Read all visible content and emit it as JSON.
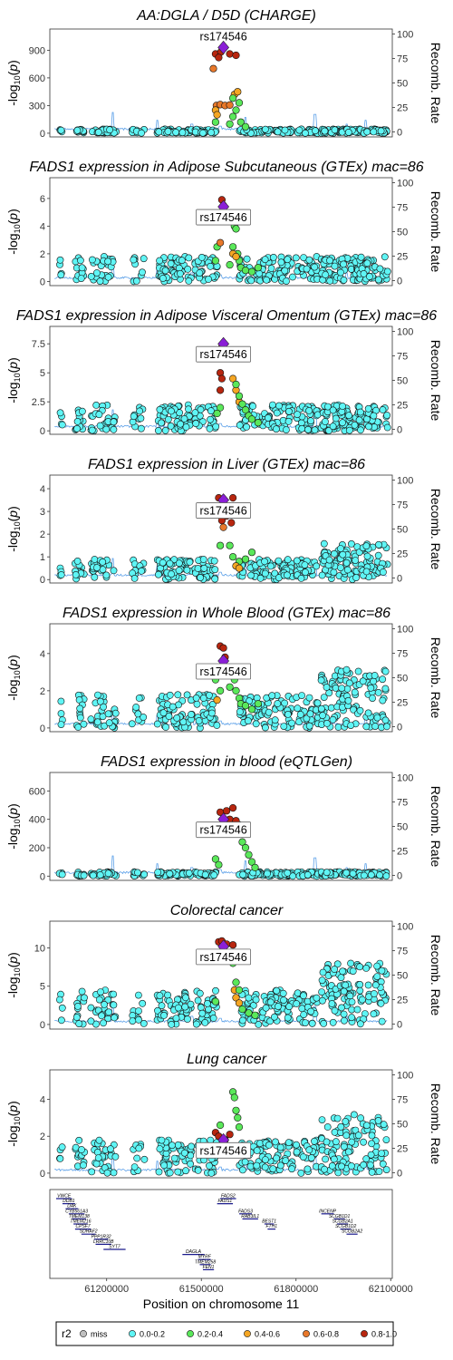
{
  "chart_data": {
    "type": "scatter",
    "xlabel": "Position on chromosome 11",
    "ylabel": "-log10(p)",
    "y2label": "Recomb. Rate",
    "xlim": [
      61020000,
      62105000
    ],
    "x_ticks": [
      61200000,
      61500000,
      61800000,
      62100000
    ],
    "y2_ticks": [
      0,
      25,
      50,
      75,
      100
    ],
    "lead_snp": "rs174546",
    "lead_position": 61570000,
    "colors": {
      "miss": "#bfbfbf",
      "0.0-0.2": "#5ff5f5",
      "0.2-0.4": "#5ae85a",
      "0.4-0.6": "#f5a623",
      "0.6-0.8": "#e8782a",
      "0.8-1.0": "#b8260f",
      "lead": "#8a1fd6",
      "recomb": "#5a9fe8"
    },
    "panels": [
      {
        "title": "AA:DGLA / D5D (CHARGE)",
        "ylim": [
          -40,
          1130
        ],
        "y_ticks": [
          0,
          300,
          600,
          900
        ],
        "lead_value": 930,
        "label_style": "plain",
        "high": [
          [
            "0.8-1.0",
            61545000,
            860
          ],
          [
            "0.8-1.0",
            61562000,
            880
          ],
          [
            "0.8-1.0",
            61590000,
            860
          ],
          [
            "0.8-1.0",
            61610000,
            845
          ],
          [
            "0.6-0.8",
            61538000,
            700
          ],
          [
            "0.8-1.0",
            61555000,
            820
          ]
        ],
        "mid": [
          [
            "0.6-0.8",
            61548000,
            300
          ],
          [
            "0.6-0.8",
            61560000,
            310
          ],
          [
            "0.6-0.8",
            61575000,
            300
          ],
          [
            "0.6-0.8",
            61590000,
            305
          ],
          [
            "0.4-0.6",
            61545000,
            250
          ],
          [
            "0.4-0.6",
            61605000,
            420
          ],
          [
            "0.4-0.6",
            61615000,
            450
          ],
          [
            "0.4-0.6",
            61550000,
            200
          ],
          [
            "0.2-0.4",
            61600000,
            380
          ],
          [
            "0.2-0.4",
            61620000,
            330
          ],
          [
            "0.2-0.4",
            61610000,
            250
          ],
          [
            "0.2-0.4",
            61600000,
            180
          ],
          [
            "0.2-0.4",
            61625000,
            120
          ],
          [
            "0.2-0.4",
            61640000,
            70
          ],
          [
            "0.2-0.4",
            61590000,
            100
          ],
          [
            "0.2-0.4",
            61545000,
            120
          ]
        ]
      },
      {
        "title": "FADS1 expression in Adipose Subcutaneous (GTEx) mac=86",
        "ylim": [
          -0.3,
          7.5
        ],
        "y_ticks": [
          0,
          2,
          4,
          6
        ],
        "lead_value": 5.4,
        "label_style": "box",
        "high": [
          [
            "0.8-1.0",
            61565000,
            5.9
          ],
          [
            "0.8-1.0",
            61570000,
            5.5
          ],
          [
            "0.8-1.0",
            61575000,
            5.0
          ],
          [
            "0.6-0.8",
            61560000,
            2.8
          ],
          [
            "0.4-0.6",
            61600000,
            2.0
          ],
          [
            "0.4-0.6",
            61610000,
            1.8
          ]
        ],
        "mid": [
          [
            "0.2-0.4",
            61605000,
            4.0
          ],
          [
            "0.2-0.4",
            61610000,
            3.8
          ],
          [
            "0.2-0.4",
            61600000,
            2.5
          ],
          [
            "0.2-0.4",
            61615000,
            2.0
          ],
          [
            "0.2-0.4",
            61620000,
            1.5
          ],
          [
            "0.2-0.4",
            61550000,
            2.5
          ],
          [
            "0.2-0.4",
            61545000,
            1.5
          ],
          [
            "0.2-0.4",
            61590000,
            1.2
          ],
          [
            "0.2-0.4",
            61625000,
            1.0
          ],
          [
            "0.2-0.4",
            61640000,
            0.8
          ],
          [
            "0.2-0.4",
            61660000,
            0.7
          ],
          [
            "0.2-0.4",
            61680000,
            1.0
          ]
        ]
      },
      {
        "title": "FADS1 expression in Adipose Visceral Omentum (GTEx) mac=86",
        "ylim": [
          -0.3,
          9.0
        ],
        "y_ticks": [
          0,
          2.5,
          5.0,
          7.5
        ],
        "lead_value": 7.5,
        "label_style": "box",
        "high": [
          [
            "0.8-1.0",
            61565000,
            7.2
          ],
          [
            "0.8-1.0",
            61560000,
            6.8
          ],
          [
            "0.8-1.0",
            61570000,
            6.5
          ],
          [
            "0.8-1.0",
            61560000,
            5.0
          ],
          [
            "0.8-1.0",
            61565000,
            4.5
          ],
          [
            "0.8-1.0",
            61560000,
            3.5
          ]
        ],
        "mid": [
          [
            "0.4-0.6",
            61600000,
            4.5
          ],
          [
            "0.4-0.6",
            61610000,
            3.5
          ],
          [
            "0.4-0.6",
            61620000,
            2.5
          ],
          [
            "0.2-0.4",
            61610000,
            4.0
          ],
          [
            "0.2-0.4",
            61620000,
            3.0
          ],
          [
            "0.2-0.4",
            61630000,
            2.3
          ],
          [
            "0.2-0.4",
            61640000,
            1.8
          ],
          [
            "0.2-0.4",
            61650000,
            1.3
          ],
          [
            "0.2-0.4",
            61660000,
            1.0
          ],
          [
            "0.2-0.4",
            61680000,
            0.7
          ],
          [
            "0.2-0.4",
            61560000,
            2.0
          ],
          [
            "0.2-0.4",
            61550000,
            1.5
          ]
        ]
      },
      {
        "title": "FADS1 expression in Liver (GTEx) mac=86",
        "ylim": [
          -0.15,
          4.6
        ],
        "y_ticks": [
          0,
          1,
          2,
          3,
          4
        ],
        "lead_value": 3.5,
        "label_style": "box",
        "high": [
          [
            "0.8-1.0",
            61555000,
            3.6
          ],
          [
            "0.8-1.0",
            61565000,
            2.6
          ],
          [
            "0.8-1.0",
            61580000,
            2.8
          ],
          [
            "0.8-1.0",
            61600000,
            3.6
          ],
          [
            "0.8-1.0",
            61595000,
            2.5
          ],
          [
            "0.6-0.8",
            61570000,
            2.3
          ]
        ],
        "mid": [
          [
            "0.2-0.4",
            61590000,
            1.5
          ],
          [
            "0.2-0.4",
            61600000,
            1.0
          ],
          [
            "0.2-0.4",
            61620000,
            0.8
          ],
          [
            "0.2-0.4",
            61640000,
            0.9
          ],
          [
            "0.4-0.6",
            61610000,
            0.6
          ],
          [
            "0.4-0.6",
            61620000,
            0.5
          ],
          [
            "0.2-0.4",
            61660000,
            1.2
          ],
          [
            "0.2-0.4",
            61560000,
            1.5
          ]
        ]
      },
      {
        "title": "FADS1 expression in Whole Blood (GTEx) mac=86",
        "ylim": [
          -0.2,
          5.6
        ],
        "y_ticks": [
          0,
          2,
          4
        ],
        "lead_value": 3.6,
        "label_style": "box",
        "high": [
          [
            "0.8-1.0",
            61560000,
            4.4
          ],
          [
            "0.8-1.0",
            61570000,
            4.3
          ],
          [
            "0.8-1.0",
            61575000,
            3.8
          ],
          [
            "0.6-0.8",
            61565000,
            3.0
          ]
        ],
        "mid": [
          [
            "0.2-0.4",
            61545000,
            2.6
          ],
          [
            "0.2-0.4",
            61560000,
            2.0
          ],
          [
            "0.2-0.4",
            61590000,
            2.2
          ],
          [
            "0.2-0.4",
            61610000,
            2.0
          ],
          [
            "0.2-0.4",
            61620000,
            1.6
          ],
          [
            "0.2-0.4",
            61625000,
            1.3
          ],
          [
            "0.2-0.4",
            61640000,
            1.2
          ],
          [
            "0.2-0.4",
            61605000,
            2.6
          ],
          [
            "0.4-0.6",
            61550000,
            1.5
          ],
          [
            "0.2-0.4",
            61660000,
            1.0
          ],
          [
            "0.2-0.4",
            61680000,
            1.3
          ]
        ]
      },
      {
        "title": "FADS1 expression in blood (eQTLGen)",
        "ylim": [
          -30,
          730
        ],
        "y_ticks": [
          0,
          200,
          400,
          600
        ],
        "lead_value": 400,
        "label_style": "box",
        "high": [
          [
            "0.8-1.0",
            61560000,
            450
          ],
          [
            "0.8-1.0",
            61580000,
            460
          ],
          [
            "0.8-1.0",
            61590000,
            400
          ],
          [
            "0.8-1.0",
            61600000,
            480
          ],
          [
            "0.8-1.0",
            61610000,
            390
          ]
        ],
        "mid": [
          [
            "0.4-0.6",
            61620000,
            360
          ],
          [
            "0.4-0.6",
            61630000,
            330
          ],
          [
            "0.2-0.4",
            61620000,
            300
          ],
          [
            "0.2-0.4",
            61630000,
            240
          ],
          [
            "0.2-0.4",
            61640000,
            200
          ],
          [
            "0.2-0.4",
            61650000,
            150
          ],
          [
            "0.2-0.4",
            61660000,
            100
          ],
          [
            "0.2-0.4",
            61670000,
            60
          ],
          [
            "0.2-0.4",
            61545000,
            120
          ],
          [
            "0.2-0.4",
            61555000,
            80
          ]
        ]
      },
      {
        "title": "Colorectal cancer",
        "ylim": [
          -0.6,
          13.5
        ],
        "y_ticks": [
          0,
          5,
          10
        ],
        "lead_value": 10.2,
        "label_style": "box",
        "high": [
          [
            "0.8-1.0",
            61555000,
            10.8
          ],
          [
            "0.8-1.0",
            61565000,
            10.9
          ],
          [
            "0.8-1.0",
            61580000,
            10.5
          ],
          [
            "0.8-1.0",
            61600000,
            10.4
          ],
          [
            "0.8-1.0",
            61590000,
            9.0
          ]
        ],
        "mid": [
          [
            "0.4-0.6",
            61605000,
            4.5
          ],
          [
            "0.4-0.6",
            61610000,
            3.5
          ],
          [
            "0.4-0.6",
            61620000,
            2.8
          ],
          [
            "0.2-0.4",
            61600000,
            8.0
          ],
          [
            "0.2-0.4",
            61610000,
            5.5
          ],
          [
            "0.2-0.4",
            61620000,
            4.5
          ],
          [
            "0.2-0.4",
            61545000,
            3.0
          ],
          [
            "0.2-0.4",
            61630000,
            2.0
          ],
          [
            "0.2-0.4",
            61650000,
            1.5
          ],
          [
            "0.2-0.4",
            61670000,
            1.2
          ]
        ]
      },
      {
        "title": "Lung cancer",
        "ylim": [
          -0.25,
          5.6
        ],
        "y_ticks": [
          0,
          2,
          4
        ],
        "lead_value": 1.8,
        "label_style": "box",
        "high": [
          [
            "0.8-1.0",
            61545000,
            2.2
          ],
          [
            "0.8-1.0",
            61555000,
            2.0
          ],
          [
            "0.8-1.0",
            61575000,
            1.8
          ],
          [
            "0.8-1.0",
            61590000,
            2.1
          ],
          [
            "0.8-1.0",
            61560000,
            1.5
          ]
        ],
        "mid": [
          [
            "0.2-0.4",
            61600000,
            4.4
          ],
          [
            "0.2-0.4",
            61605000,
            4.1
          ],
          [
            "0.2-0.4",
            61610000,
            3.4
          ],
          [
            "0.2-0.4",
            61615000,
            3.0
          ],
          [
            "0.2-0.4",
            61620000,
            2.5
          ],
          [
            "0.2-0.4",
            61630000,
            1.5
          ],
          [
            "0.2-0.4",
            61645000,
            1.2
          ],
          [
            "0.2-0.4",
            61560000,
            2.6
          ]
        ]
      }
    ],
    "genes": [
      {
        "name": "VWCE",
        "start": 61040000,
        "end": 61090000,
        "row": 0
      },
      {
        "name": "DDB1",
        "start": 61060000,
        "end": 61100000,
        "row": 1
      },
      {
        "name": "DAK",
        "start": 61070000,
        "end": 61110000,
        "row": 2
      },
      {
        "name": "CYB561A3",
        "start": 61080000,
        "end": 61130000,
        "row": 3
      },
      {
        "name": "TMEM138",
        "start": 61090000,
        "end": 61135000,
        "row": 4
      },
      {
        "name": "TMEM216",
        "start": 61095000,
        "end": 61140000,
        "row": 5
      },
      {
        "name": "CPSF7",
        "start": 61100000,
        "end": 61150000,
        "row": 6
      },
      {
        "name": "SDHAF2",
        "start": 61120000,
        "end": 61165000,
        "row": 7
      },
      {
        "name": "PPP1R32",
        "start": 61160000,
        "end": 61205000,
        "row": 8
      },
      {
        "name": "LRRC10B",
        "start": 61165000,
        "end": 61215000,
        "row": 9
      },
      {
        "name": "SYT7",
        "start": 61190000,
        "end": 61260000,
        "row": 10
      },
      {
        "name": "DAGLA",
        "start": 61440000,
        "end": 61510000,
        "row": 11
      },
      {
        "name": "MYRF",
        "start": 61490000,
        "end": 61530000,
        "row": 12
      },
      {
        "name": "TMEM258",
        "start": 61495000,
        "end": 61530000,
        "row": 13
      },
      {
        "name": "FEN1",
        "start": 61505000,
        "end": 61540000,
        "row": 14
      },
      {
        "name": "FADS2",
        "start": 61560000,
        "end": 61610000,
        "row": 0
      },
      {
        "name": "FADS1",
        "start": 61550000,
        "end": 61600000,
        "row": 1
      },
      {
        "name": "FADS3",
        "start": 61620000,
        "end": 61660000,
        "row": 3
      },
      {
        "name": "RAB3IL1",
        "start": 61630000,
        "end": 61680000,
        "row": 4
      },
      {
        "name": "BEST1",
        "start": 61700000,
        "end": 61730000,
        "row": 5
      },
      {
        "name": "FTH1",
        "start": 61710000,
        "end": 61735000,
        "row": 6
      },
      {
        "name": "INCENP",
        "start": 61880000,
        "end": 61920000,
        "row": 3
      },
      {
        "name": "SCGB1D1",
        "start": 61920000,
        "end": 61955000,
        "row": 4
      },
      {
        "name": "SCGB2A1",
        "start": 61930000,
        "end": 61965000,
        "row": 5
      },
      {
        "name": "SCGB1D2",
        "start": 61940000,
        "end": 61975000,
        "row": 6
      },
      {
        "name": "SCGB2A2",
        "start": 61960000,
        "end": 61995000,
        "row": 7
      }
    ],
    "legend": {
      "title": "r2",
      "entries": [
        {
          "key": "miss",
          "label": "miss"
        },
        {
          "key": "0.0-0.2",
          "label": "0.0-0.2"
        },
        {
          "key": "0.2-0.4",
          "label": "0.2-0.4"
        },
        {
          "key": "0.4-0.6",
          "label": "0.4-0.6"
        },
        {
          "key": "0.6-0.8",
          "label": "0.6-0.8"
        },
        {
          "key": "0.8-1.0",
          "label": "0.8-1.0"
        }
      ]
    }
  }
}
